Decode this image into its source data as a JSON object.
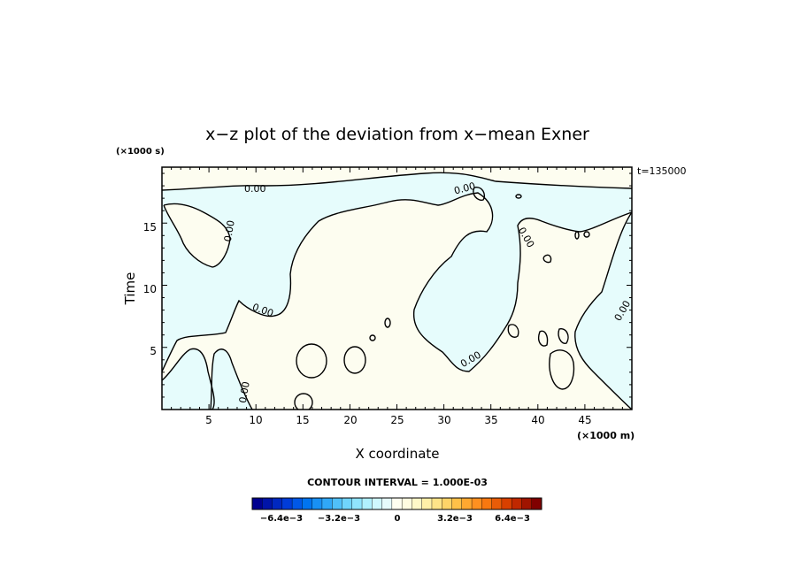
{
  "chart_data": {
    "type": "contour",
    "title": "x−z plot of the deviation from x−mean Exner",
    "xlabel": "X coordinate",
    "ylabel": "Time",
    "x_unit": "(×1000 m)",
    "y_unit": "(×1000 s)",
    "time_label": "t=135000",
    "xlim": [
      0,
      50
    ],
    "ylim": [
      0,
      19.5
    ],
    "x_ticks": [
      5,
      10,
      15,
      20,
      25,
      30,
      35,
      40,
      45
    ],
    "y_ticks": [
      5,
      10,
      15
    ],
    "contour_interval_text": "CONTOUR INTERVAL = 1.000E-03",
    "contour_labels": [
      "0.00",
      "0.00",
      "0.00",
      "0.00",
      "0.00",
      "0.00",
      "0.00",
      "0.00"
    ],
    "colorbar_ticks": [
      "−6.4e−3",
      "−3.2e−3",
      "0",
      "3.2e−3",
      "6.4e−3"
    ],
    "colors": {
      "negative_fill": "#e6fcfc",
      "positive_fill": "#fdfdf0",
      "contour_line": "#000000"
    }
  }
}
